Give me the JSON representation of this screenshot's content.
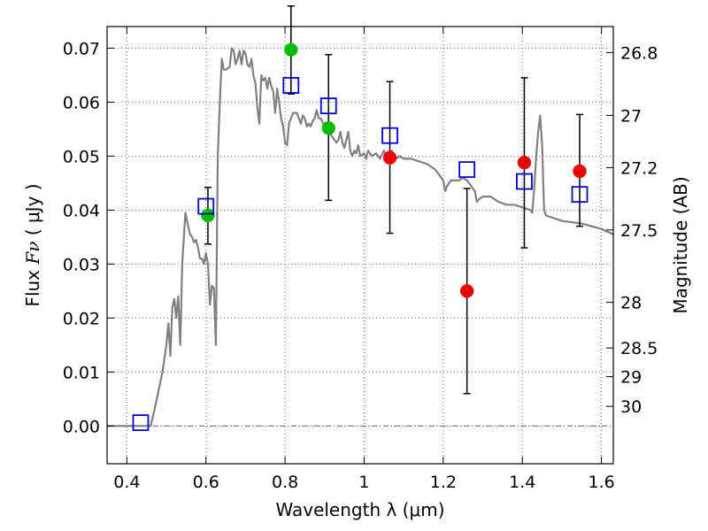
{
  "chart_data": {
    "type": "scatter",
    "xlabel": "Wavelength  λ (μm)",
    "ylabel_prefix": "Flux  ",
    "ylabel_symbol": "Fν",
    "ylabel_suffix": "  ( μJy )",
    "y2label": "Magnitude (AB)",
    "xlim": [
      0.35,
      1.63
    ],
    "ylim": [
      -0.007,
      0.074
    ],
    "grid": true,
    "x_ticks": [
      {
        "value": 0.4,
        "label": "0.4"
      },
      {
        "value": 0.6,
        "label": "0.6"
      },
      {
        "value": 0.8,
        "label": "0.8"
      },
      {
        "value": 1.0,
        "label": "1"
      },
      {
        "value": 1.2,
        "label": "1.2"
      },
      {
        "value": 1.4,
        "label": "1.4"
      },
      {
        "value": 1.6,
        "label": "1.6"
      }
    ],
    "y_ticks": [
      {
        "value": 0.0,
        "label": "0.00"
      },
      {
        "value": 0.01,
        "label": "0.01"
      },
      {
        "value": 0.02,
        "label": "0.02"
      },
      {
        "value": 0.03,
        "label": "0.03"
      },
      {
        "value": 0.04,
        "label": "0.04"
      },
      {
        "value": 0.05,
        "label": "0.05"
      },
      {
        "value": 0.06,
        "label": "0.06"
      },
      {
        "value": 0.07,
        "label": "0.07"
      }
    ],
    "mag_ticks": [
      {
        "value": 26.8,
        "label": "26.8"
      },
      {
        "value": 27.0,
        "label": "27"
      },
      {
        "value": 27.2,
        "label": "27.2"
      },
      {
        "value": 27.5,
        "label": "27.5"
      },
      {
        "value": 28.0,
        "label": "28"
      },
      {
        "value": 28.5,
        "label": "28.5"
      },
      {
        "value": 29.0,
        "label": "29"
      },
      {
        "value": 30.0,
        "label": "30"
      }
    ],
    "colors": {
      "model": "#808080",
      "green": "#00bb00",
      "red": "#ee0000",
      "blue": "#0000cc",
      "grid": "#555555"
    },
    "series": [
      {
        "kind": "line",
        "points": [
          [
            0.35,
            0.0
          ],
          [
            0.46,
            0.0
          ],
          [
            0.47,
            0.003
          ],
          [
            0.49,
            0.01
          ],
          [
            0.5,
            0.015
          ],
          [
            0.505,
            0.019
          ],
          [
            0.51,
            0.013
          ],
          [
            0.515,
            0.022
          ],
          [
            0.52,
            0.0235
          ],
          [
            0.525,
            0.02
          ],
          [
            0.53,
            0.024
          ],
          [
            0.535,
            0.015
          ],
          [
            0.54,
            0.03
          ],
          [
            0.548,
            0.0395
          ],
          [
            0.555,
            0.037
          ],
          [
            0.56,
            0.0355
          ],
          [
            0.565,
            0.035
          ],
          [
            0.57,
            0.034
          ],
          [
            0.575,
            0.0345
          ],
          [
            0.58,
            0.033
          ],
          [
            0.585,
            0.031
          ],
          [
            0.59,
            0.031
          ],
          [
            0.595,
            0.03
          ],
          [
            0.6,
            0.032
          ],
          [
            0.605,
            0.03
          ],
          [
            0.61,
            0.0225
          ],
          [
            0.615,
            0.026
          ],
          [
            0.62,
            0.0255
          ],
          [
            0.625,
            0.015
          ],
          [
            0.63,
            0.05
          ],
          [
            0.635,
            0.06
          ],
          [
            0.64,
            0.068
          ],
          [
            0.645,
            0.066
          ],
          [
            0.65,
            0.066
          ],
          [
            0.66,
            0.0665
          ],
          [
            0.665,
            0.07
          ],
          [
            0.67,
            0.0695
          ],
          [
            0.675,
            0.067
          ],
          [
            0.68,
            0.068
          ],
          [
            0.685,
            0.0695
          ],
          [
            0.69,
            0.067
          ],
          [
            0.695,
            0.0695
          ],
          [
            0.7,
            0.069
          ],
          [
            0.705,
            0.067
          ],
          [
            0.71,
            0.0665
          ],
          [
            0.715,
            0.068
          ],
          [
            0.72,
            0.065
          ],
          [
            0.725,
            0.0635
          ],
          [
            0.73,
            0.059
          ],
          [
            0.735,
            0.056
          ],
          [
            0.74,
            0.065
          ],
          [
            0.745,
            0.064
          ],
          [
            0.75,
            0.0645
          ],
          [
            0.755,
            0.0625
          ],
          [
            0.76,
            0.0645
          ],
          [
            0.765,
            0.063
          ],
          [
            0.77,
            0.062
          ],
          [
            0.775,
            0.058
          ],
          [
            0.78,
            0.0625
          ],
          [
            0.785,
            0.06
          ],
          [
            0.79,
            0.057
          ],
          [
            0.795,
            0.0555
          ],
          [
            0.8,
            0.0525
          ],
          [
            0.805,
            0.052
          ],
          [
            0.81,
            0.056
          ],
          [
            0.815,
            0.057
          ],
          [
            0.82,
            0.058
          ],
          [
            0.83,
            0.058
          ],
          [
            0.835,
            0.057
          ],
          [
            0.84,
            0.056
          ],
          [
            0.845,
            0.0575
          ],
          [
            0.85,
            0.057
          ],
          [
            0.855,
            0.0555
          ],
          [
            0.86,
            0.056
          ],
          [
            0.865,
            0.0555
          ],
          [
            0.87,
            0.0565
          ],
          [
            0.875,
            0.057
          ],
          [
            0.88,
            0.0585
          ],
          [
            0.885,
            0.057
          ],
          [
            0.89,
            0.057
          ],
          [
            0.9,
            0.0555
          ],
          [
            0.905,
            0.0545
          ],
          [
            0.91,
            0.0555
          ],
          [
            0.915,
            0.054
          ],
          [
            0.92,
            0.0535
          ],
          [
            0.93,
            0.0525
          ],
          [
            0.935,
            0.053
          ],
          [
            0.94,
            0.0545
          ],
          [
            0.945,
            0.0525
          ],
          [
            0.95,
            0.0515
          ],
          [
            0.96,
            0.0545
          ],
          [
            0.965,
            0.051
          ],
          [
            0.97,
            0.05
          ],
          [
            0.975,
            0.051
          ],
          [
            0.98,
            0.0505
          ],
          [
            0.985,
            0.052
          ],
          [
            0.99,
            0.05
          ],
          [
            1.0,
            0.0505
          ],
          [
            1.005,
            0.0495
          ],
          [
            1.01,
            0.051
          ],
          [
            1.02,
            0.05
          ],
          [
            1.03,
            0.0505
          ],
          [
            1.04,
            0.0495
          ],
          [
            1.05,
            0.051
          ],
          [
            1.06,
            0.0495
          ],
          [
            1.07,
            0.051
          ],
          [
            1.08,
            0.0495
          ],
          [
            1.09,
            0.05
          ],
          [
            1.1,
            0.0495
          ],
          [
            1.12,
            0.0495
          ],
          [
            1.14,
            0.049
          ],
          [
            1.16,
            0.0485
          ],
          [
            1.18,
            0.0475
          ],
          [
            1.19,
            0.0465
          ],
          [
            1.2,
            0.0455
          ],
          [
            1.205,
            0.0435
          ],
          [
            1.21,
            0.0445
          ],
          [
            1.215,
            0.045
          ],
          [
            1.22,
            0.0455
          ],
          [
            1.23,
            0.0455
          ],
          [
            1.24,
            0.0455
          ],
          [
            1.25,
            0.046
          ],
          [
            1.26,
            0.0455
          ],
          [
            1.27,
            0.0445
          ],
          [
            1.28,
            0.0435
          ],
          [
            1.285,
            0.0415
          ],
          [
            1.29,
            0.042
          ],
          [
            1.3,
            0.0425
          ],
          [
            1.32,
            0.0425
          ],
          [
            1.34,
            0.0415
          ],
          [
            1.36,
            0.041
          ],
          [
            1.38,
            0.041
          ],
          [
            1.4,
            0.0405
          ],
          [
            1.42,
            0.04
          ],
          [
            1.425,
            0.0395
          ],
          [
            1.43,
            0.044
          ],
          [
            1.435,
            0.05
          ],
          [
            1.44,
            0.0545
          ],
          [
            1.445,
            0.0575
          ],
          [
            1.45,
            0.052
          ],
          [
            1.455,
            0.04
          ],
          [
            1.46,
            0.039
          ],
          [
            1.5,
            0.038
          ],
          [
            1.55,
            0.0375
          ],
          [
            1.6,
            0.0365
          ],
          [
            1.63,
            0.0355
          ]
        ]
      },
      {
        "kind": "errorbars",
        "points": [
          {
            "x": 0.605,
            "y": 0.039,
            "lo": 0.0337,
            "hi": 0.0442
          },
          {
            "x": 0.815,
            "y": 0.0697,
            "lo": 0.0615,
            "hi": 0.0778
          },
          {
            "x": 0.91,
            "y": 0.0552,
            "lo": 0.0418,
            "hi": 0.0688
          },
          {
            "x": 1.065,
            "y": 0.0497,
            "lo": 0.0357,
            "hi": 0.0638
          },
          {
            "x": 1.26,
            "y": 0.025,
            "lo": 0.006,
            "hi": 0.044
          },
          {
            "x": 1.405,
            "y": 0.0488,
            "lo": 0.033,
            "hi": 0.0645
          },
          {
            "x": 1.545,
            "y": 0.0472,
            "lo": 0.037,
            "hi": 0.0577
          }
        ]
      },
      {
        "kind": "markers",
        "marker": "circle",
        "color": "green",
        "points": [
          [
            0.605,
            0.039
          ],
          [
            0.815,
            0.0697
          ],
          [
            0.91,
            0.0552
          ]
        ]
      },
      {
        "kind": "markers",
        "marker": "circle",
        "color": "red",
        "points": [
          [
            1.065,
            0.0497
          ],
          [
            1.26,
            0.025
          ],
          [
            1.405,
            0.0488
          ],
          [
            1.545,
            0.0472
          ]
        ]
      },
      {
        "kind": "markers",
        "marker": "square",
        "color": "blue",
        "points": [
          [
            0.435,
            0.0006
          ],
          [
            0.6,
            0.0407
          ],
          [
            0.815,
            0.0631
          ],
          [
            0.91,
            0.0593
          ],
          [
            1.065,
            0.0538
          ],
          [
            1.26,
            0.0475
          ],
          [
            1.405,
            0.0453
          ],
          [
            1.545,
            0.0429
          ]
        ]
      }
    ]
  }
}
